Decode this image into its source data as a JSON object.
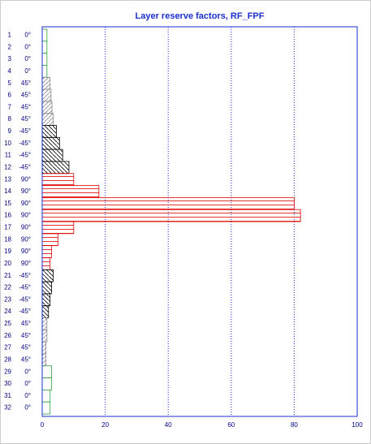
{
  "chart_data": {
    "type": "layer-profile",
    "title": "Layer reserve factors, RF_FPF",
    "categories": [
      "1",
      "2",
      "3",
      "4",
      "5",
      "6",
      "7",
      "8",
      "9",
      "10",
      "11",
      "12",
      "13",
      "14",
      "15",
      "16",
      "17",
      "18",
      "19",
      "20",
      "21",
      "22",
      "23",
      "24",
      "25",
      "26",
      "27",
      "28",
      "29",
      "30",
      "31",
      "32"
    ],
    "angles": [
      "0°",
      "0°",
      "0°",
      "0°",
      "45°",
      "45°",
      "45°",
      "45°",
      "-45°",
      "-45°",
      "-45°",
      "-45°",
      "90°",
      "90°",
      "90°",
      "90°",
      "90°",
      "90°",
      "90°",
      "90°",
      "-45°",
      "-45°",
      "-45°",
      "-45°",
      "45°",
      "45°",
      "45°",
      "45°",
      "0°",
      "0°",
      "0°",
      "0°"
    ],
    "values": [
      1.5,
      1.5,
      1.5,
      1.5,
      2.5,
      2.8,
      3.1,
      3.5,
      4.5,
      5.5,
      6.5,
      8.5,
      10,
      18,
      80,
      82,
      10,
      5,
      3,
      2.5,
      3.5,
      3,
      2.5,
      2,
      1.5,
      1.5,
      1.2,
      1.2,
      3,
      3,
      2.5,
      2.5
    ],
    "colors": [
      "#2e9e3a",
      "#2e9e3a",
      "#2e9e3a",
      "#2e9e3a",
      "#888888",
      "#888888",
      "#888888",
      "#888888",
      "#000000",
      "#000000",
      "#000000",
      "#000000",
      "#e00000",
      "#e00000",
      "#e00000",
      "#e00000",
      "#e00000",
      "#e00000",
      "#e00000",
      "#e00000",
      "#000000",
      "#000000",
      "#000000",
      "#000000",
      "#888888",
      "#888888",
      "#888888",
      "#888888",
      "#2e9e3a",
      "#2e9e3a",
      "#2e9e3a",
      "#2e9e3a"
    ],
    "hatch": [
      "none",
      "none",
      "none",
      "none",
      "diag",
      "diag",
      "diag",
      "diag",
      "anti",
      "anti",
      "anti",
      "anti",
      "horiz",
      "horiz",
      "horiz",
      "horiz",
      "horiz",
      "horiz",
      "horiz",
      "horiz",
      "anti",
      "anti",
      "anti",
      "anti",
      "diag",
      "diag",
      "diag",
      "diag",
      "none",
      "none",
      "none",
      "none"
    ],
    "xlim": [
      0,
      100
    ],
    "xticks": [
      0,
      20,
      40,
      60,
      80,
      100
    ],
    "grid": true
  }
}
